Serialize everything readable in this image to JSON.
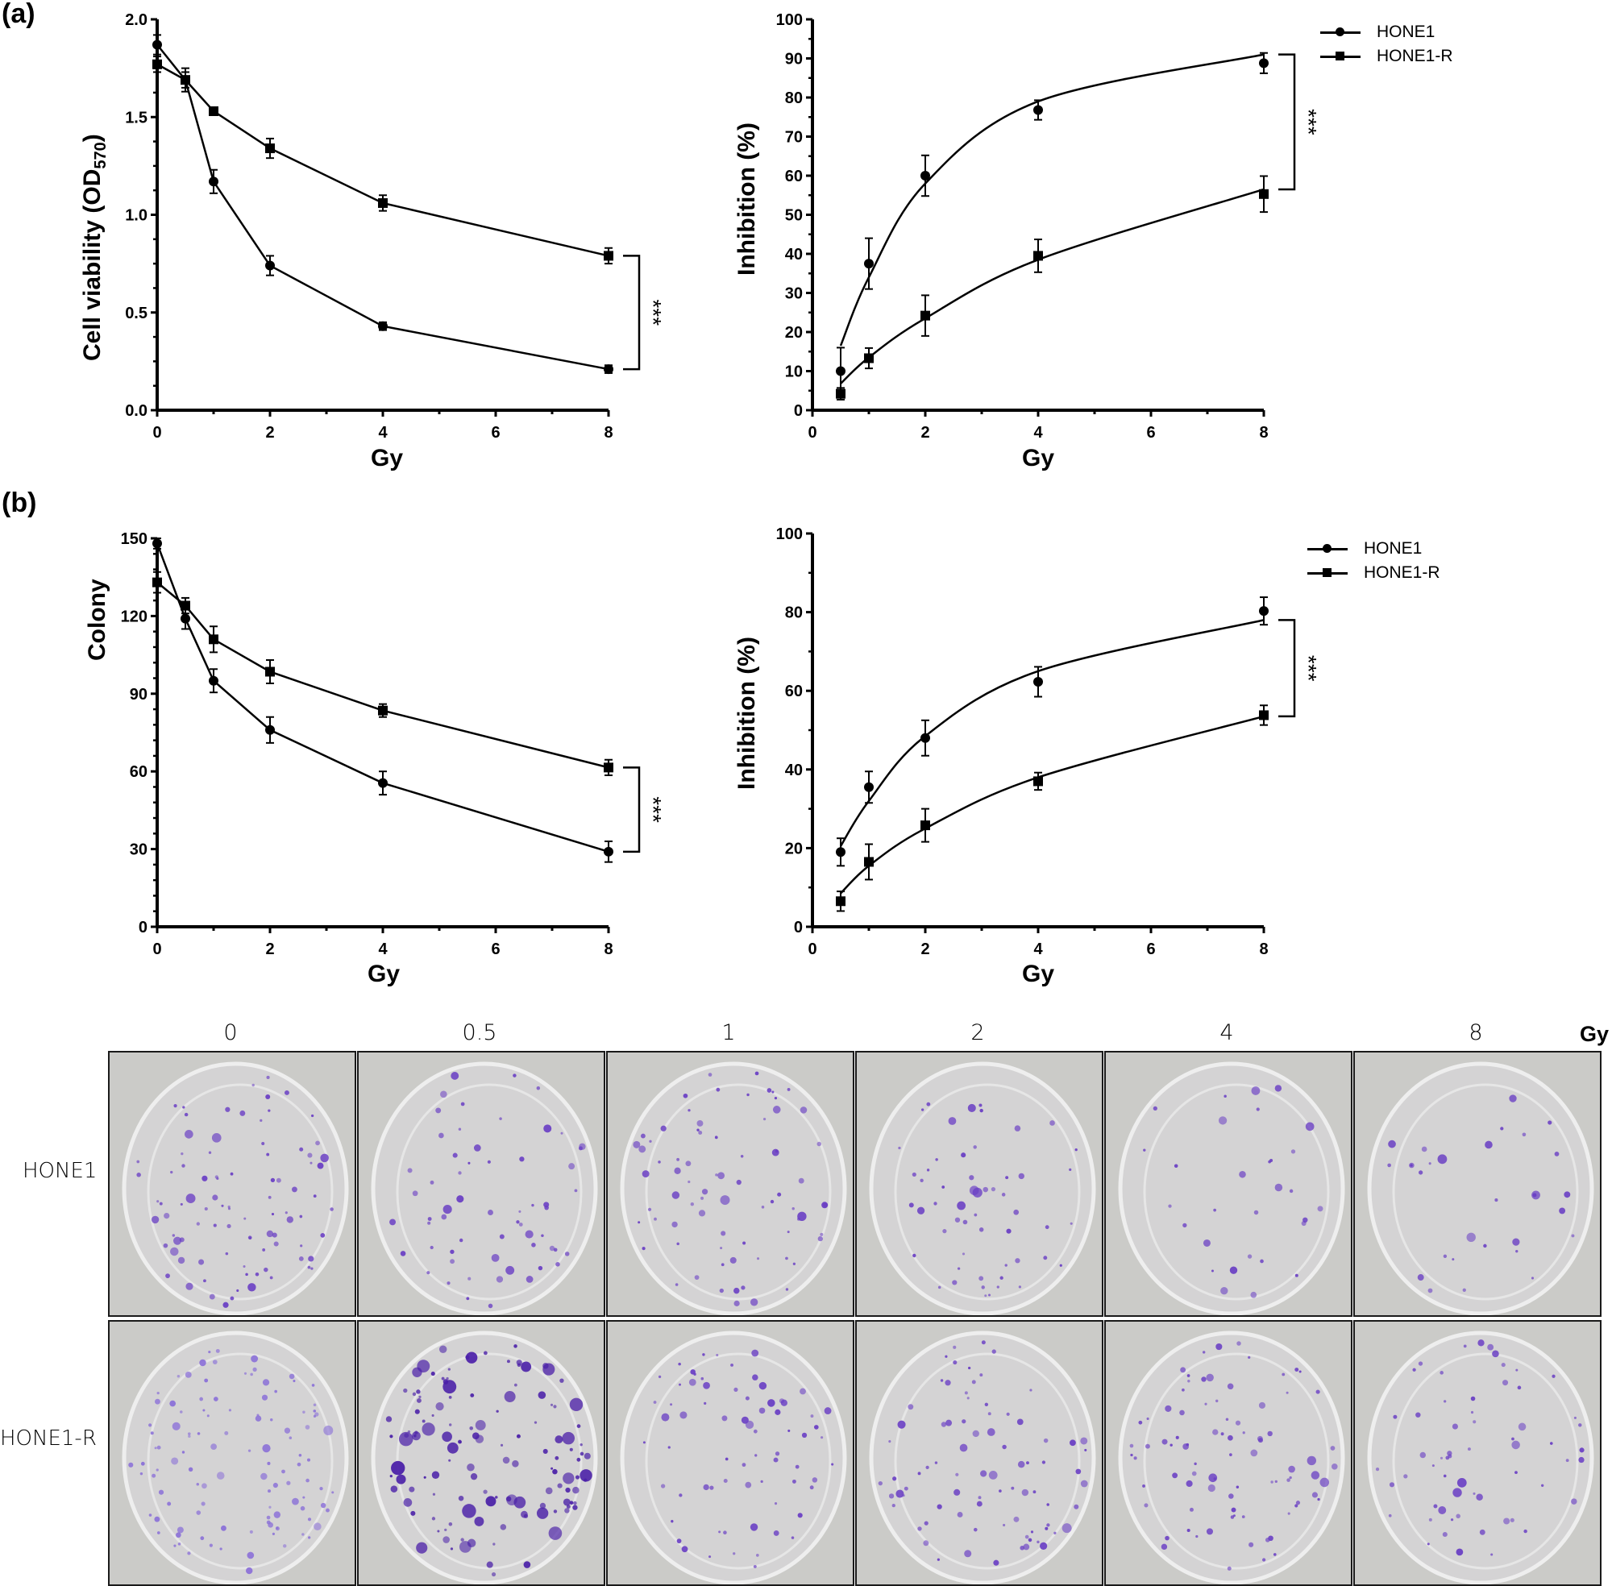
{
  "panels": {
    "a_label": "(a)",
    "b_label": "(b)"
  },
  "legend": {
    "series": [
      {
        "name": "HONE1",
        "marker": "circle"
      },
      {
        "name": "HONE1-R",
        "marker": "square"
      }
    ]
  },
  "significance": "***",
  "chart_data": [
    {
      "id": "a-viability",
      "type": "line",
      "title": "",
      "xlabel": "Gy",
      "ylabel": "Cell viability (OD570)",
      "ylabel_main": "Cell viability (OD",
      "ylabel_sub": "570",
      "ylabel_close": ")",
      "xlim": [
        0,
        8
      ],
      "ylim": [
        0,
        2.0
      ],
      "xticks": [
        0,
        2,
        4,
        6,
        8
      ],
      "yticks": [
        0.0,
        0.5,
        1.0,
        1.5,
        2.0
      ],
      "ytick_labels": [
        "0.0",
        "0.5",
        "1.0",
        "1.5",
        "2.0"
      ],
      "grid": false,
      "legend_position": "none",
      "series": [
        {
          "name": "HONE1",
          "marker": "circle",
          "x": [
            0,
            0.5,
            1,
            2,
            4,
            8
          ],
          "values": [
            1.87,
            1.69,
            1.17,
            0.74,
            0.43,
            0.21
          ],
          "errors": [
            0.05,
            0.06,
            0.06,
            0.05,
            0.02,
            0.02
          ]
        },
        {
          "name": "HONE1-R",
          "marker": "square",
          "x": [
            0,
            0.5,
            1,
            2,
            4,
            8
          ],
          "values": [
            1.77,
            1.69,
            1.53,
            1.34,
            1.06,
            0.79
          ],
          "errors": [
            0.04,
            0.04,
            0.02,
            0.05,
            0.04,
            0.04
          ]
        }
      ],
      "annotation": "*** (HONE1 vs HONE1-R at 8 Gy)"
    },
    {
      "id": "a-inhibition",
      "type": "line",
      "title": "",
      "xlabel": "Gy",
      "ylabel": "Inhibition (%)",
      "xlim": [
        0,
        8
      ],
      "ylim": [
        0,
        100
      ],
      "xticks": [
        0,
        2,
        4,
        6,
        8
      ],
      "yticks": [
        0,
        10,
        20,
        30,
        40,
        50,
        60,
        70,
        80,
        90,
        100
      ],
      "ytick_labels": [
        "0",
        "10",
        "20",
        "30",
        "40",
        "50",
        "60",
        "70",
        "80",
        "90",
        "100"
      ],
      "grid": false,
      "legend_position": "top-right outside",
      "fit": "curve",
      "series": [
        {
          "name": "HONE1",
          "marker": "circle",
          "x": [
            0.5,
            1,
            2,
            4,
            8
          ],
          "values": [
            10,
            37.5,
            60,
            76.8,
            88.8
          ],
          "errors": [
            6,
            6.5,
            5.2,
            2.5,
            2.6
          ],
          "fit_values": [
            16.5,
            34,
            58,
            79,
            91
          ]
        },
        {
          "name": "HONE1-R",
          "marker": "square",
          "x": [
            0.5,
            1,
            2,
            4,
            8
          ],
          "values": [
            4.2,
            13.3,
            24.2,
            39.5,
            55.3
          ],
          "errors": [
            1.5,
            2.6,
            5.2,
            4.2,
            4.6
          ],
          "fit_values": [
            6.8,
            13.5,
            23.5,
            38.5,
            56.5
          ]
        }
      ],
      "annotation": "*** (HONE1 vs HONE1-R at 8 Gy)"
    },
    {
      "id": "b-colony",
      "type": "line",
      "title": "",
      "xlabel": "Gy",
      "ylabel": "Colony",
      "xlim": [
        0,
        8
      ],
      "ylim": [
        0,
        150
      ],
      "xticks": [
        0,
        2,
        4,
        6,
        8
      ],
      "yticks": [
        0,
        30,
        60,
        90,
        120,
        150
      ],
      "ytick_labels": [
        "0",
        "30",
        "60",
        "90",
        "120",
        "150"
      ],
      "grid": false,
      "legend_position": "none",
      "series": [
        {
          "name": "HONE1",
          "marker": "circle",
          "x": [
            0,
            0.5,
            1,
            2,
            4,
            8
          ],
          "values": [
            148,
            119,
            95,
            76,
            55.5,
            29
          ],
          "errors": [
            2,
            4,
            4.5,
            5,
            4.5,
            4
          ]
        },
        {
          "name": "HONE1-R",
          "marker": "square",
          "x": [
            0,
            0.5,
            1,
            2,
            4,
            8
          ],
          "values": [
            133,
            124,
            111,
            98.5,
            83.5,
            61.5
          ],
          "errors": [
            4,
            3,
            5,
            4.5,
            2.5,
            3
          ]
        }
      ],
      "annotation": "*** (HONE1 vs HONE1-R at 8 Gy)"
    },
    {
      "id": "b-inhibition",
      "type": "line",
      "title": "",
      "xlabel": "Gy",
      "ylabel": "Inhibition (%)",
      "xlim": [
        0,
        8
      ],
      "ylim": [
        0,
        100
      ],
      "xticks": [
        0,
        2,
        4,
        6,
        8
      ],
      "yticks": [
        0,
        20,
        40,
        60,
        80,
        100
      ],
      "ytick_labels": [
        "0",
        "20",
        "40",
        "60",
        "80",
        "100"
      ],
      "grid": false,
      "legend_position": "top-right outside",
      "fit": "curve",
      "series": [
        {
          "name": "HONE1",
          "marker": "circle",
          "x": [
            0.5,
            1,
            2,
            4,
            8
          ],
          "values": [
            19,
            35.5,
            48,
            62.3,
            80.3
          ],
          "errors": [
            3.5,
            4,
            4.5,
            3.8,
            3.5
          ],
          "fit_values": [
            20.5,
            32,
            48.5,
            65,
            78
          ]
        },
        {
          "name": "HONE1-R",
          "marker": "square",
          "x": [
            0.5,
            1,
            2,
            4,
            8
          ],
          "values": [
            6.5,
            16.5,
            25.8,
            37,
            53.8
          ],
          "errors": [
            2.5,
            4.5,
            4.2,
            2.2,
            2.5
          ],
          "fit_values": [
            8.5,
            15.5,
            25,
            38,
            53.5
          ]
        }
      ],
      "annotation": "*** (HONE1 vs HONE1-R at 8 Gy)"
    }
  ],
  "colony_photos": {
    "unit_label": "Gy",
    "doses": [
      "0",
      "0.5",
      "1",
      "2",
      "4",
      "8"
    ],
    "rows": [
      {
        "label": "HONE1",
        "colony_density": [
          90,
          60,
          75,
          55,
          30,
          30
        ]
      },
      {
        "label": "HONE1-R",
        "colony_density": [
          110,
          130,
          70,
          80,
          85,
          60
        ]
      }
    ]
  }
}
